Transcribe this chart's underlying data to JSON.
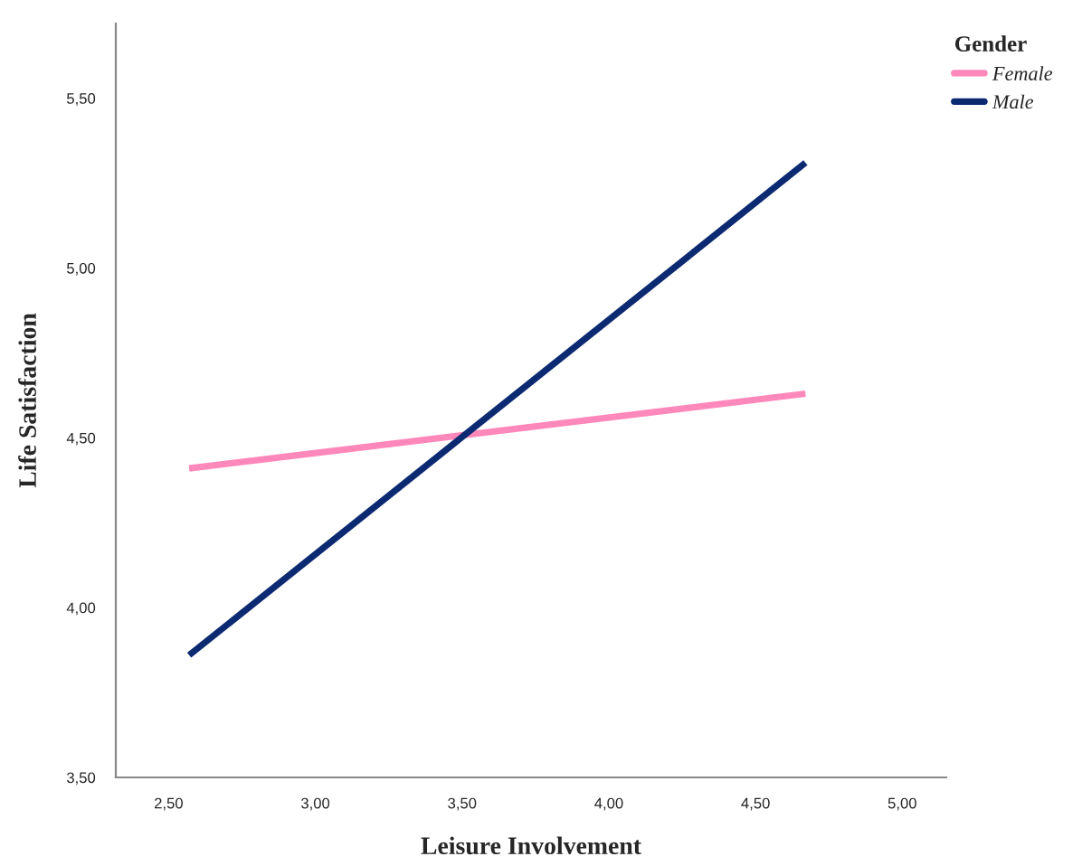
{
  "chart_data": {
    "type": "line",
    "xlabel": "Leisure Involvement",
    "ylabel": "Life Satisfaction",
    "legend_title": "Gender",
    "legend": "top right",
    "x": [
      2.57,
      4.67
    ],
    "series": [
      {
        "name": "Female",
        "color": "#ff88bb",
        "values": [
          4.41,
          4.63
        ]
      },
      {
        "name": "Male",
        "color": "#0c2a72",
        "values": [
          3.86,
          5.31
        ]
      }
    ],
    "xlim": [
      2.32,
      5.15
    ],
    "ylim": [
      3.5,
      5.72
    ],
    "xticks": [
      {
        "value": 2.5,
        "label": "2,50"
      },
      {
        "value": 3.0,
        "label": "3,00"
      },
      {
        "value": 3.5,
        "label": "3,50"
      },
      {
        "value": 4.0,
        "label": "4,00"
      },
      {
        "value": 4.5,
        "label": "4,50"
      },
      {
        "value": 5.0,
        "label": "5,00"
      }
    ],
    "yticks": [
      {
        "value": 3.5,
        "label": "3,50"
      },
      {
        "value": 4.0,
        "label": "4,00"
      },
      {
        "value": 4.5,
        "label": "4,50"
      },
      {
        "value": 5.0,
        "label": "5,00"
      },
      {
        "value": 5.5,
        "label": "5,50"
      }
    ],
    "grid": false,
    "marker": "none",
    "line_style": "solid"
  }
}
